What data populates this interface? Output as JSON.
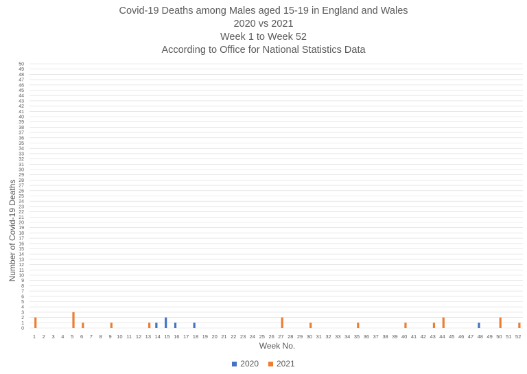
{
  "chart_data": {
    "type": "bar",
    "title_lines": [
      "Covid-19 Deaths among Males aged 15-19 in England and Wales",
      "2020 vs 2021",
      "Week 1 to Week 52",
      "According to Office for National Statistics Data"
    ],
    "xlabel": "Week No.",
    "ylabel": "Number of Covid-19 Deaths",
    "ylim": [
      0,
      50
    ],
    "ytick_step": 1,
    "grid": true,
    "legend_position": "bottom",
    "categories": [
      "1",
      "2",
      "3",
      "4",
      "5",
      "6",
      "7",
      "8",
      "9",
      "10",
      "11",
      "12",
      "13",
      "14",
      "15",
      "16",
      "17",
      "18",
      "19",
      "20",
      "21",
      "22",
      "23",
      "24",
      "25",
      "26",
      "27",
      "28",
      "29",
      "30",
      "31",
      "32",
      "33",
      "34",
      "35",
      "36",
      "37",
      "38",
      "39",
      "40",
      "41",
      "42",
      "43",
      "44",
      "45",
      "46",
      "47",
      "48",
      "49",
      "50",
      "51",
      "52"
    ],
    "series": [
      {
        "name": "2020",
        "color": "#4472C4",
        "values": [
          0,
          0,
          0,
          0,
          0,
          0,
          0,
          0,
          0,
          0,
          0,
          0,
          0,
          1,
          2,
          1,
          0,
          1,
          0,
          0,
          0,
          0,
          0,
          0,
          0,
          0,
          0,
          0,
          0,
          0,
          0,
          0,
          0,
          0,
          0,
          0,
          0,
          0,
          0,
          0,
          0,
          0,
          0,
          0,
          0,
          0,
          0,
          1,
          0,
          0,
          0,
          0
        ]
      },
      {
        "name": "2021",
        "color": "#ED7D31",
        "values": [
          2,
          0,
          0,
          0,
          3,
          1,
          0,
          0,
          1,
          0,
          0,
          0,
          1,
          0,
          0,
          0,
          0,
          0,
          0,
          0,
          0,
          0,
          0,
          0,
          0,
          0,
          2,
          0,
          0,
          1,
          0,
          0,
          0,
          0,
          1,
          0,
          0,
          0,
          0,
          1,
          0,
          0,
          1,
          2,
          0,
          0,
          0,
          0,
          0,
          2,
          0,
          1
        ]
      }
    ]
  },
  "colors": {
    "gridline": "#d9d9d9",
    "text": "#595959"
  }
}
